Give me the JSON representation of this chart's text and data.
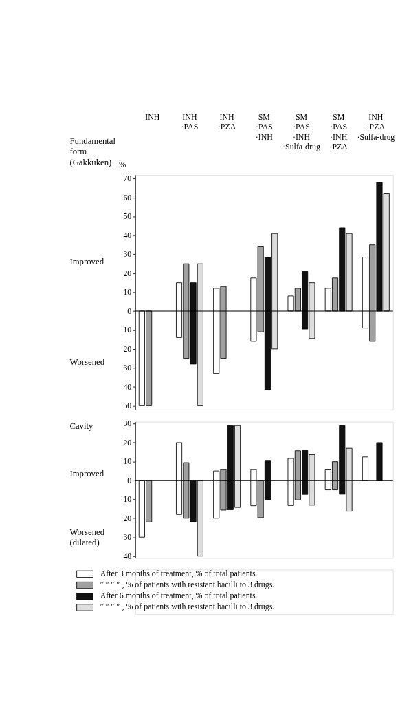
{
  "chart_data": [
    {
      "type": "bar",
      "title": "Fundamental form (Gakkuken)",
      "ylabel": "%",
      "annotations": [
        "Improved",
        "Worsened"
      ],
      "categories": [
        "INH",
        "INH·PAS",
        "INH·PZA",
        "SM·PAS·INH",
        "SM·PAS·INH·Sulfa-drug",
        "SM·PAS·INH·PZA",
        "INH·PZA·Sulfa-drug"
      ],
      "series": [
        {
          "color": "#ffffff",
          "base": [
            -50,
            -14,
            -33,
            -16,
            0,
            0,
            -9
          ],
          "values": [
            50,
            29,
            45,
            33.5,
            8,
            12,
            37.5
          ]
        },
        {
          "color": "#a0a0a0",
          "base": [
            -50,
            -25,
            -25,
            -11,
            0,
            0,
            -16
          ],
          "values": [
            50,
            50,
            38,
            45,
            12,
            17.5,
            51
          ]
        },
        {
          "color": "#111111",
          "base": [
            null,
            -28,
            null,
            -41.5,
            -9.5,
            0,
            0
          ],
          "values": [
            null,
            43,
            null,
            70,
            30.5,
            44,
            68
          ]
        },
        {
          "color": "#dedede",
          "base": [
            null,
            -50,
            null,
            -20,
            -14.5,
            0,
            0
          ],
          "values": [
            null,
            75,
            null,
            61,
            29.5,
            41,
            62
          ]
        }
      ],
      "ylim": [
        -52,
        72
      ],
      "yticks": [
        {
          "value": -50,
          "label": "50"
        },
        {
          "value": -40,
          "label": "40"
        },
        {
          "value": -30,
          "label": "30"
        },
        {
          "value": -20,
          "label": "20"
        },
        {
          "value": -10,
          "label": "10"
        },
        0,
        10,
        20,
        30,
        40,
        50,
        60,
        70
      ],
      "ref_lines": [
        {
          "axis": "y",
          "value": 0
        }
      ],
      "grid": false,
      "legend": false
    },
    {
      "type": "bar",
      "title": "Cavity",
      "annotations": [
        "Improved",
        "Worsened (dilated)"
      ],
      "categories": [
        "INH",
        "INH·PAS",
        "INH·PZA",
        "SM·PAS·INH",
        "SM·PAS·INH·Sulfa-drug",
        "SM·PAS·INH·PZA",
        "INH·PZA·Sulfa-drug"
      ],
      "tick_labels": "y",
      "series": [
        {
          "name": "After 3 months of treatment, % of total patients.",
          "color": "#ffffff",
          "base": [
            -30,
            -18,
            -20,
            -13.4,
            -13.3,
            -5,
            0
          ],
          "values": [
            30,
            38,
            25,
            19.1,
            24.9,
            10.6,
            12.4
          ]
        },
        {
          "name": "″ ″ ″ ″ , % of patients with resistant bacilli to 3 drugs.",
          "color": "#a0a0a0",
          "base": [
            -22,
            -20,
            -15.7,
            -19.7,
            -10.3,
            -5,
            null
          ],
          "values": [
            22,
            29.4,
            21.4,
            19.7,
            26,
            14.9,
            null
          ]
        },
        {
          "name": "After 6 months of treatment, % of total patients.",
          "color": "#111111",
          "base": [
            null,
            -22,
            -15.5,
            -10.4,
            -7.4,
            -7.3,
            0
          ],
          "values": [
            null,
            22,
            44.5,
            21,
            23.3,
            36.3,
            20
          ]
        },
        {
          "name": "″ ″ ″ ″ , % of patients with resistant bacilli to 3 drugs.",
          "color": "#dedede",
          "base": [
            null,
            -40,
            -14.3,
            null,
            -13.1,
            -16.3,
            null
          ],
          "values": [
            null,
            40,
            43.3,
            null,
            26.7,
            33.3,
            null
          ]
        }
      ],
      "ylim": [
        -41,
        31
      ],
      "yticks": [
        {
          "value": -40,
          "label": "40"
        },
        {
          "value": -30,
          "label": "30"
        },
        {
          "value": -20,
          "label": "20"
        },
        {
          "value": -10,
          "label": "10"
        },
        0,
        10,
        20,
        30
      ],
      "ref_lines": [
        {
          "axis": "y",
          "value": 0
        }
      ],
      "grid": false,
      "legend": "bottom"
    }
  ]
}
